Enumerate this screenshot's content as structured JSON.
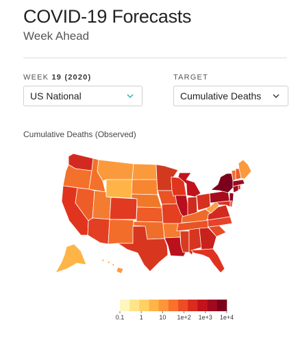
{
  "header": {
    "title": "COVID-19 Forecasts",
    "subtitle": "Week Ahead"
  },
  "week": {
    "label_prefix": "WEEK",
    "label_value": "19 (2020)",
    "selected": "US National"
  },
  "target": {
    "label": "TARGET",
    "selected": "Cumulative Deaths"
  },
  "map": {
    "title": "Cumulative Deaths (Observed)",
    "legend": {
      "ticks": [
        "0.1",
        "1",
        "10",
        "1e+2",
        "1e+3",
        "1e+4"
      ],
      "colors": [
        "#fff5bf",
        "#ffe58a",
        "#ffd064",
        "#feb446",
        "#fd953a",
        "#f9712c",
        "#ee4c22",
        "#db2a1e",
        "#c2131c",
        "#a10a1e",
        "#7c001c"
      ]
    },
    "colors": {
      "accent": "#23b1b1"
    }
  }
}
